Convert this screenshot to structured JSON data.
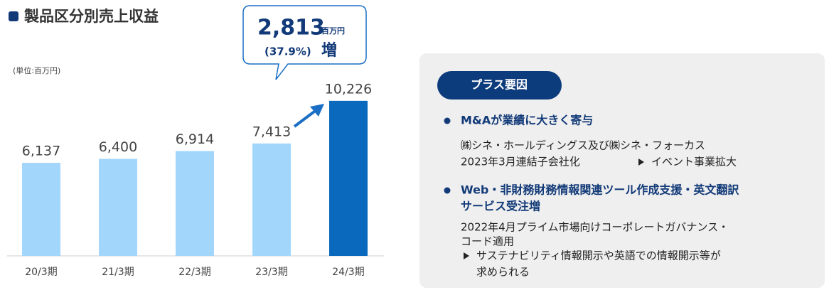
{
  "chart_data": {
    "type": "bar",
    "title": "製品区分別売上収益",
    "unit_label": "(単位:百万円)",
    "categories": [
      "20/3期",
      "21/3期",
      "22/3期",
      "23/3期",
      "24/3期"
    ],
    "values": [
      6137,
      6400,
      6914,
      7413,
      10226
    ],
    "value_labels": [
      "6,137",
      "6,400",
      "6,914",
      "7,413",
      "10,226"
    ],
    "colors": [
      "#a3d6fb",
      "#a3d6fb",
      "#a3d6fb",
      "#a3d6fb",
      "#0b69bd"
    ],
    "ylim": [
      0,
      12000
    ],
    "annotation": {
      "amount": "2,813",
      "amount_unit": "百万円",
      "rate": "(37.9%)",
      "suffix": "増"
    }
  },
  "panel": {
    "label": "プラス要因",
    "items": [
      {
        "heading": [
          "M&Aが業績に大きく寄与"
        ],
        "lines": [
          "㈱シネ・ホールディングス及び㈱シネ・フォーカス",
          "2023年3月連結子会社化",
          "イベント事業拡大"
        ]
      },
      {
        "heading": [
          "Web・非財務財務情報関連ツール作成支援・英文翻訳",
          "サービス受注増"
        ],
        "lines": [
          "2022年4月プライム市場向けコーポレートガバナンス・",
          "コード適用",
          "サステナビリティ情報開示や英語での情報開示等が",
          "求められる"
        ]
      }
    ]
  }
}
